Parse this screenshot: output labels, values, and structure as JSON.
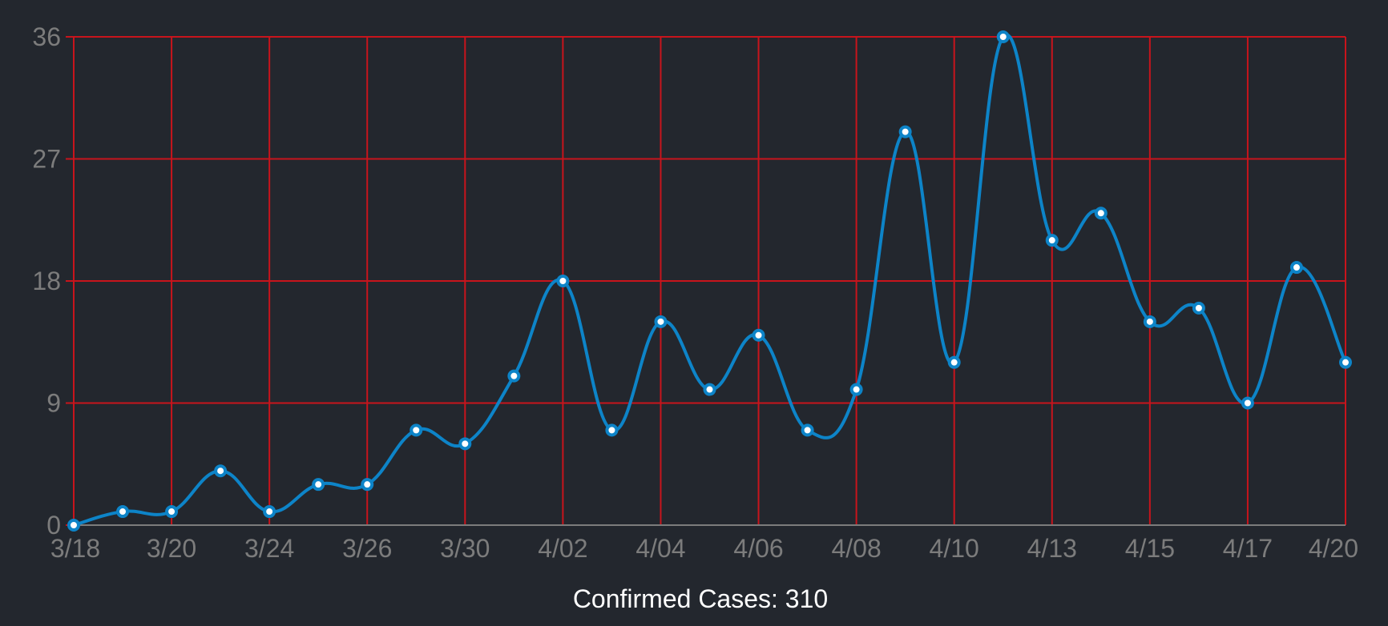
{
  "caption": "Confirmed Cases: 310",
  "colors": {
    "background": "#23272e",
    "grid": "#c8141c",
    "line": "#0d84c8",
    "tick_text": "#7c7c7c",
    "caption_text": "#ffffff"
  },
  "chart_data": {
    "type": "line",
    "smooth": true,
    "title": "",
    "xlabel": "",
    "ylabel": "",
    "grid": true,
    "ylim": [
      0,
      36
    ],
    "yticks": [
      0,
      9,
      18,
      27,
      36
    ],
    "x": [
      "3/18",
      "3/19",
      "3/20",
      "3/22",
      "3/24",
      "3/25",
      "3/26",
      "3/28",
      "3/30",
      "3/31",
      "4/02",
      "4/03",
      "4/04",
      "4/05",
      "4/06",
      "4/07",
      "4/08",
      "4/09",
      "4/10",
      "4/11",
      "4/13",
      "4/14",
      "4/15",
      "4/16",
      "4/17",
      "4/18",
      "4/20"
    ],
    "xticks": [
      "3/18",
      "3/20",
      "3/24",
      "3/26",
      "3/30",
      "4/02",
      "4/04",
      "4/06",
      "4/08",
      "4/10",
      "4/13",
      "4/15",
      "4/17",
      "4/20"
    ],
    "series": [
      {
        "values": [
          0,
          1,
          1,
          4,
          1,
          3,
          3,
          7,
          6,
          11,
          18,
          7,
          15,
          10,
          14,
          7,
          10,
          29,
          12,
          36,
          21,
          23,
          15,
          16,
          9,
          19,
          12
        ]
      }
    ]
  }
}
